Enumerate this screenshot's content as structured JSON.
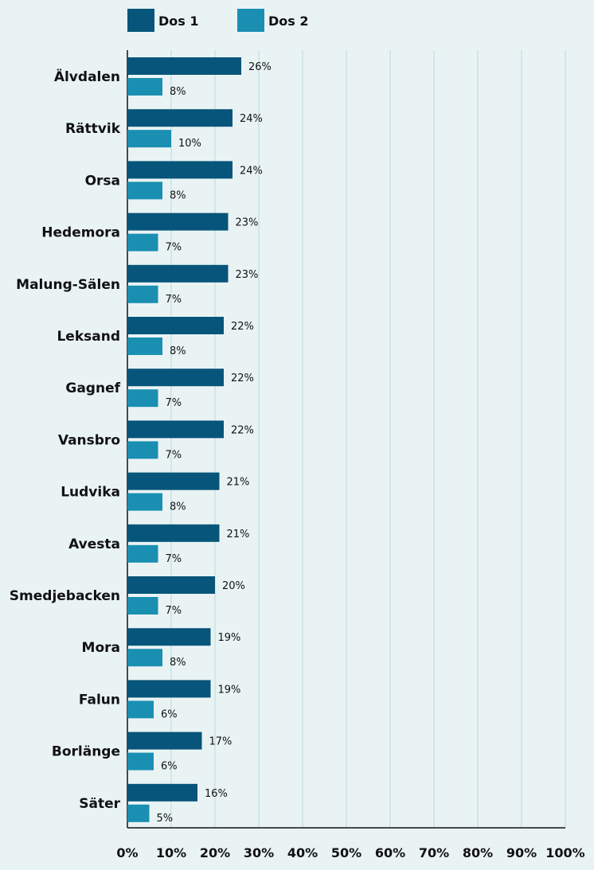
{
  "chart_data": {
    "type": "bar",
    "orientation": "horizontal",
    "categories": [
      "Älvdalen",
      "Rättvik",
      "Orsa",
      "Hedemora",
      "Malung-Sälen",
      "Leksand",
      "Gagnef",
      "Vansbro",
      "Ludvika",
      "Avesta",
      "Smedjebacken",
      "Mora",
      "Falun",
      "Borlänge",
      "Säter"
    ],
    "series": [
      {
        "name": "Dos 1",
        "color": "#07557a",
        "values": [
          26,
          24,
          24,
          23,
          23,
          22,
          22,
          22,
          21,
          21,
          20,
          19,
          19,
          17,
          16
        ],
        "value_labels": [
          "26%",
          "24%",
          "24%",
          "23%",
          "23%",
          "22%",
          "22%",
          "22%",
          "21%",
          "21%",
          "20%",
          "19%",
          "19%",
          "17%",
          "16%"
        ]
      },
      {
        "name": "Dos 2",
        "color": "#1a8fb2",
        "values": [
          8,
          10,
          8,
          7,
          7,
          8,
          7,
          7,
          8,
          7,
          7,
          8,
          6,
          6,
          5
        ],
        "value_labels": [
          "8%",
          "10%",
          "8%",
          "7%",
          "7%",
          "8%",
          "7%",
          "7%",
          "8%",
          "7%",
          "7%",
          "8%",
          "6%",
          "6%",
          "5%"
        ]
      }
    ],
    "xlim": [
      0,
      100
    ],
    "xticks": [
      "0%",
      "10%",
      "20%",
      "30%",
      "40%",
      "50%",
      "60%",
      "70%",
      "80%",
      "90%",
      "100%"
    ],
    "grid": true,
    "legend_position": "top",
    "background": "#e9f3f4",
    "grid_color": "#b9d8dd",
    "axis_color": "#111111"
  }
}
